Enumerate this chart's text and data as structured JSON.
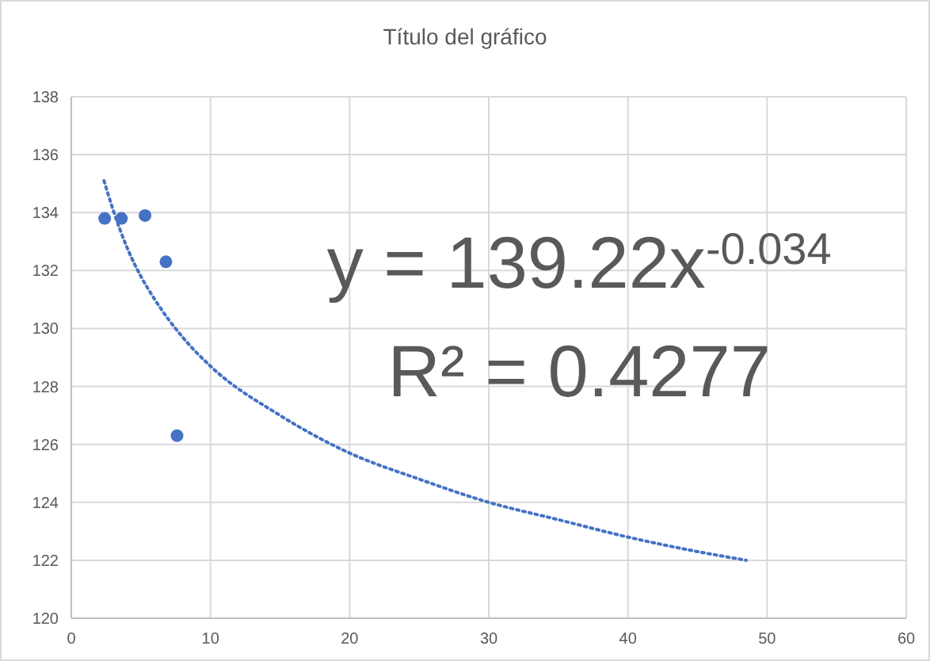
{
  "chart_data": {
    "type": "scatter",
    "title": "Título del gráfico",
    "xlim": [
      0,
      60
    ],
    "xticks": [
      0,
      10,
      20,
      30,
      40,
      50,
      60
    ],
    "ylim": [
      120,
      138
    ],
    "yticks": [
      120,
      122,
      124,
      126,
      128,
      130,
      132,
      134,
      136,
      138
    ],
    "grid": true,
    "marker": "circle",
    "series": [
      {
        "color": "#4472c4",
        "x": [
          2.4,
          3.6,
          5.3,
          6.8,
          7.6
        ],
        "values": [
          133.8,
          133.8,
          133.9,
          132.3,
          126.3
        ]
      },
      {
        "type": "line",
        "color": "#4472c4",
        "line_style": "dotted",
        "marker": "none",
        "x": [
          2.35,
          3,
          4,
          5,
          6,
          8,
          10,
          15,
          20,
          25,
          30,
          35,
          40,
          45,
          48.5
        ],
        "values": [
          135.1,
          134.1,
          132.8,
          131.8,
          131.0,
          129.7,
          128.7,
          127.0,
          125.7,
          124.8,
          124.0,
          123.4,
          122.8,
          122.3,
          122.0
        ]
      }
    ],
    "annotations": [
      "y = 139.22x$^{-0.034}$",
      "R² = 0.4277"
    ]
  }
}
